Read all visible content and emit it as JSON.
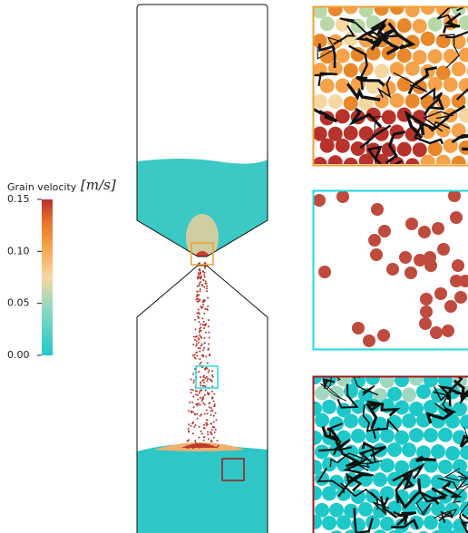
{
  "chart_data": {
    "type": "colorbar",
    "label": "Grain velocity",
    "unit": "[m/s]",
    "ylim": [
      0,
      0.15
    ],
    "yticks": [
      {
        "value": 0,
        "label": "0.00"
      },
      0.05,
      {
        "value": 0.1,
        "label": "0.10"
      },
      0.15
    ]
  }
}
